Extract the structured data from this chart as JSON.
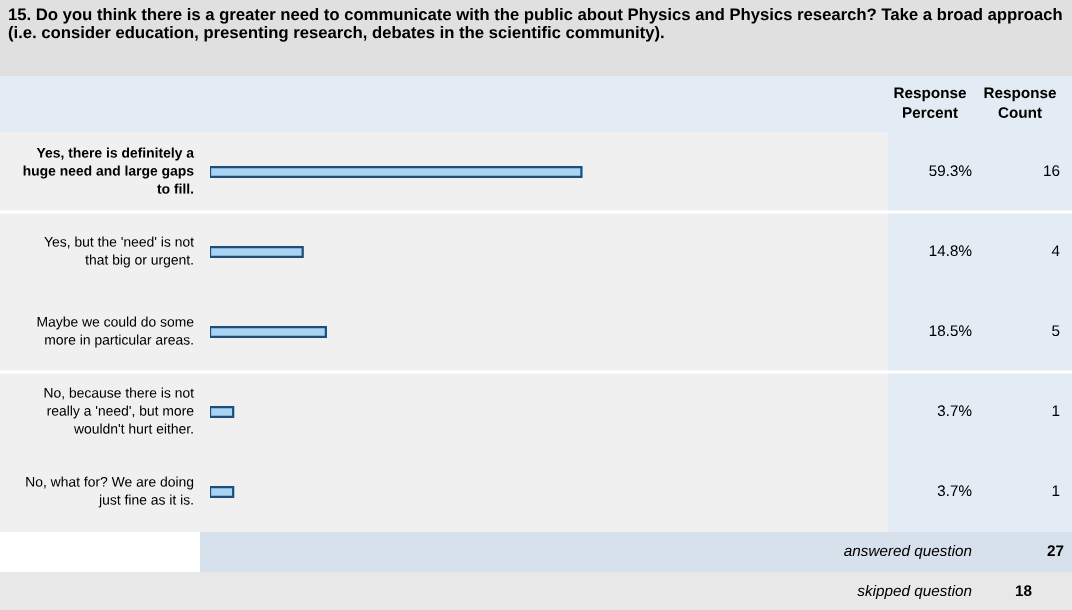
{
  "chart_data": {
    "type": "bar",
    "orientation": "horizontal",
    "title": "15. Do you think there is a greater need to communicate with the public about Physics and Physics research? Take a broad approach (i.e. consider education, presenting research, debates in the scientific community).",
    "categories": [
      "Yes, there is definitely a huge need and large gaps to fill.",
      "Yes, but the 'need' is not that big or urgent.",
      "Maybe we could do some more in particular areas.",
      "No, because there is not really a 'need', but more wouldn't hurt either.",
      "No, what for? We are doing just fine as it is."
    ],
    "values": [
      59.3,
      14.8,
      18.5,
      3.7,
      3.7
    ],
    "value_labels": [
      "59.3%",
      "14.8%",
      "18.5%",
      "3.7%",
      "3.7%"
    ],
    "color": "#a8d3f3",
    "annotations": [
      "Response Percent",
      "Response Count",
      "16",
      "4",
      "5",
      "1",
      "1",
      "answered question",
      "27",
      "skipped question",
      "18"
    ]
  }
}
